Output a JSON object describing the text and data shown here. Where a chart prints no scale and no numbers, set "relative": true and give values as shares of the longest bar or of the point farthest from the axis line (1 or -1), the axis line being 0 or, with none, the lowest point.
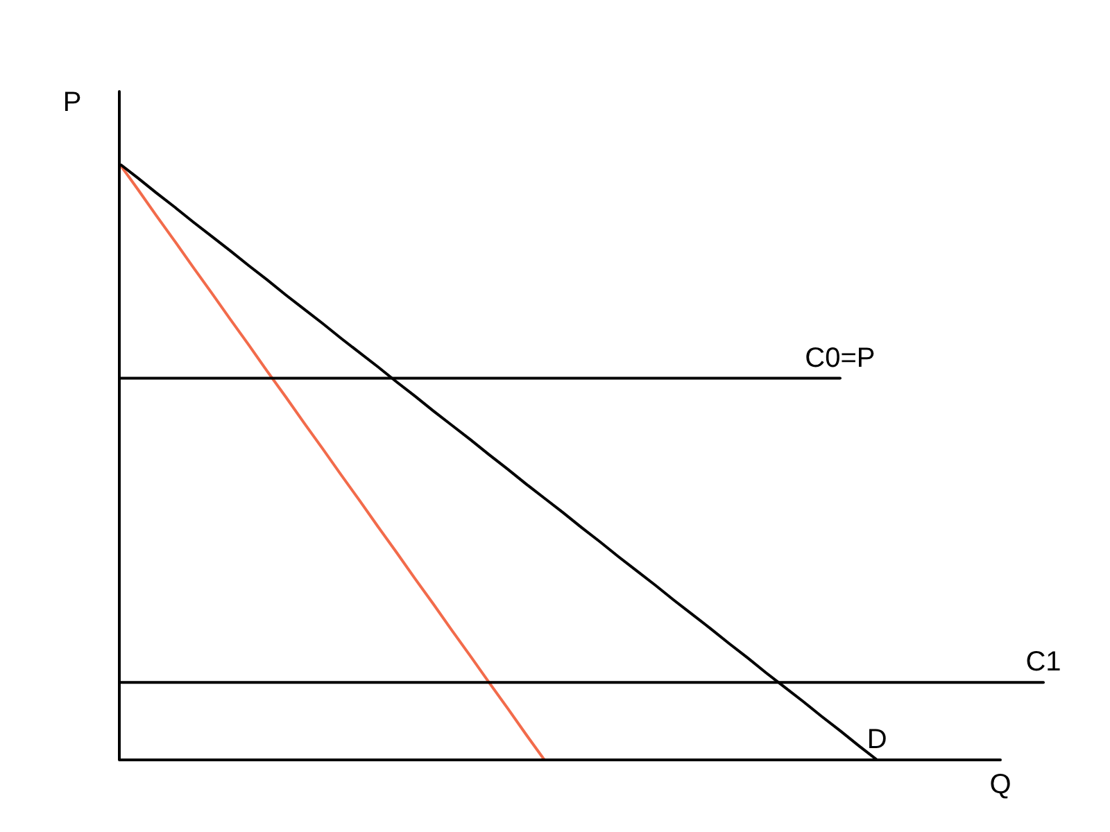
{
  "chart_data": {
    "type": "line",
    "relative": true,
    "xlabel": "Q",
    "ylabel": "P",
    "legend": false,
    "tick_labels": false,
    "marker": "none",
    "line_style": "solid",
    "categories": [
      null,
      null,
      null,
      null,
      null,
      null,
      null,
      null,
      null,
      null,
      null,
      null,
      null,
      null,
      null,
      null,
      null,
      null,
      null,
      null,
      null,
      null,
      null,
      null,
      null,
      null,
      null,
      null,
      null,
      null,
      null,
      null,
      null,
      null,
      null,
      null,
      null,
      null,
      null,
      null,
      null,
      null,
      null,
      null,
      null,
      null,
      null,
      null,
      null,
      null,
      null
    ],
    "series": [
      {
        "name": "C0=P",
        "color": "#000000",
        "values": [
          0.64,
          0.64,
          0.64,
          0.64,
          0.64,
          0.64,
          0.64,
          0.64,
          0.64,
          0.64,
          0.64,
          0.64,
          0.64,
          0.64,
          0.64,
          0.64,
          0.64,
          0.64,
          0.64,
          0.64,
          0.64,
          0.64,
          0.64,
          0.64,
          0.64,
          0.64,
          0.64,
          0.64,
          0.64,
          0.64,
          0.64,
          0.64,
          0.64,
          0.64,
          0.64,
          0.64,
          0.64,
          0.64,
          0.64,
          0.64,
          null,
          null,
          null,
          null,
          null,
          null,
          null,
          null,
          null,
          null,
          null
        ]
      },
      {
        "name": "C1",
        "color": "#000000",
        "values": [
          0.13,
          0.13,
          0.13,
          0.13,
          0.13,
          0.13,
          0.13,
          0.13,
          0.13,
          0.13,
          0.13,
          0.13,
          0.13,
          0.13,
          0.13,
          0.13,
          0.13,
          0.13,
          0.13,
          0.13,
          0.13,
          0.13,
          0.13,
          0.13,
          0.13,
          0.13,
          0.13,
          0.13,
          0.13,
          0.13,
          0.13,
          0.13,
          0.13,
          0.13,
          0.13,
          0.13,
          0.13,
          0.13,
          0.13,
          0.13,
          0.13,
          0.13,
          0.13,
          0.13,
          0.13,
          0.13,
          0.13,
          0.13,
          0.13,
          0.13,
          0.13
        ]
      },
      {
        "name": "D",
        "color": "#000000",
        "values": [
          1,
          0.976,
          0.951,
          0.927,
          0.902,
          0.878,
          0.854,
          0.829,
          0.805,
          0.78,
          0.756,
          0.732,
          0.707,
          0.683,
          0.659,
          0.634,
          0.61,
          0.585,
          0.561,
          0.537,
          0.512,
          0.488,
          0.463,
          0.439,
          0.415,
          0.39,
          0.366,
          0.341,
          0.317,
          0.293,
          0.268,
          0.244,
          0.22,
          0.195,
          0.171,
          0.146,
          0.122,
          0.098,
          0.073,
          0.049,
          0.024,
          0,
          null,
          null,
          null,
          null,
          null,
          null,
          null,
          null,
          null
        ]
      },
      {
        "color": "#f26b4b",
        "values": [
          1,
          0.957,
          0.913,
          0.87,
          0.826,
          0.783,
          0.739,
          0.696,
          0.652,
          0.609,
          0.565,
          0.522,
          0.478,
          0.435,
          0.391,
          0.348,
          0.304,
          0.261,
          0.217,
          0.174,
          0.13,
          0.087,
          0.043,
          0,
          null,
          null,
          null,
          null,
          null,
          null,
          null,
          null,
          null,
          null,
          null,
          null,
          null,
          null,
          null,
          null,
          null,
          null,
          null,
          null,
          null,
          null,
          null,
          null,
          null,
          null,
          null
        ]
      }
    ]
  }
}
